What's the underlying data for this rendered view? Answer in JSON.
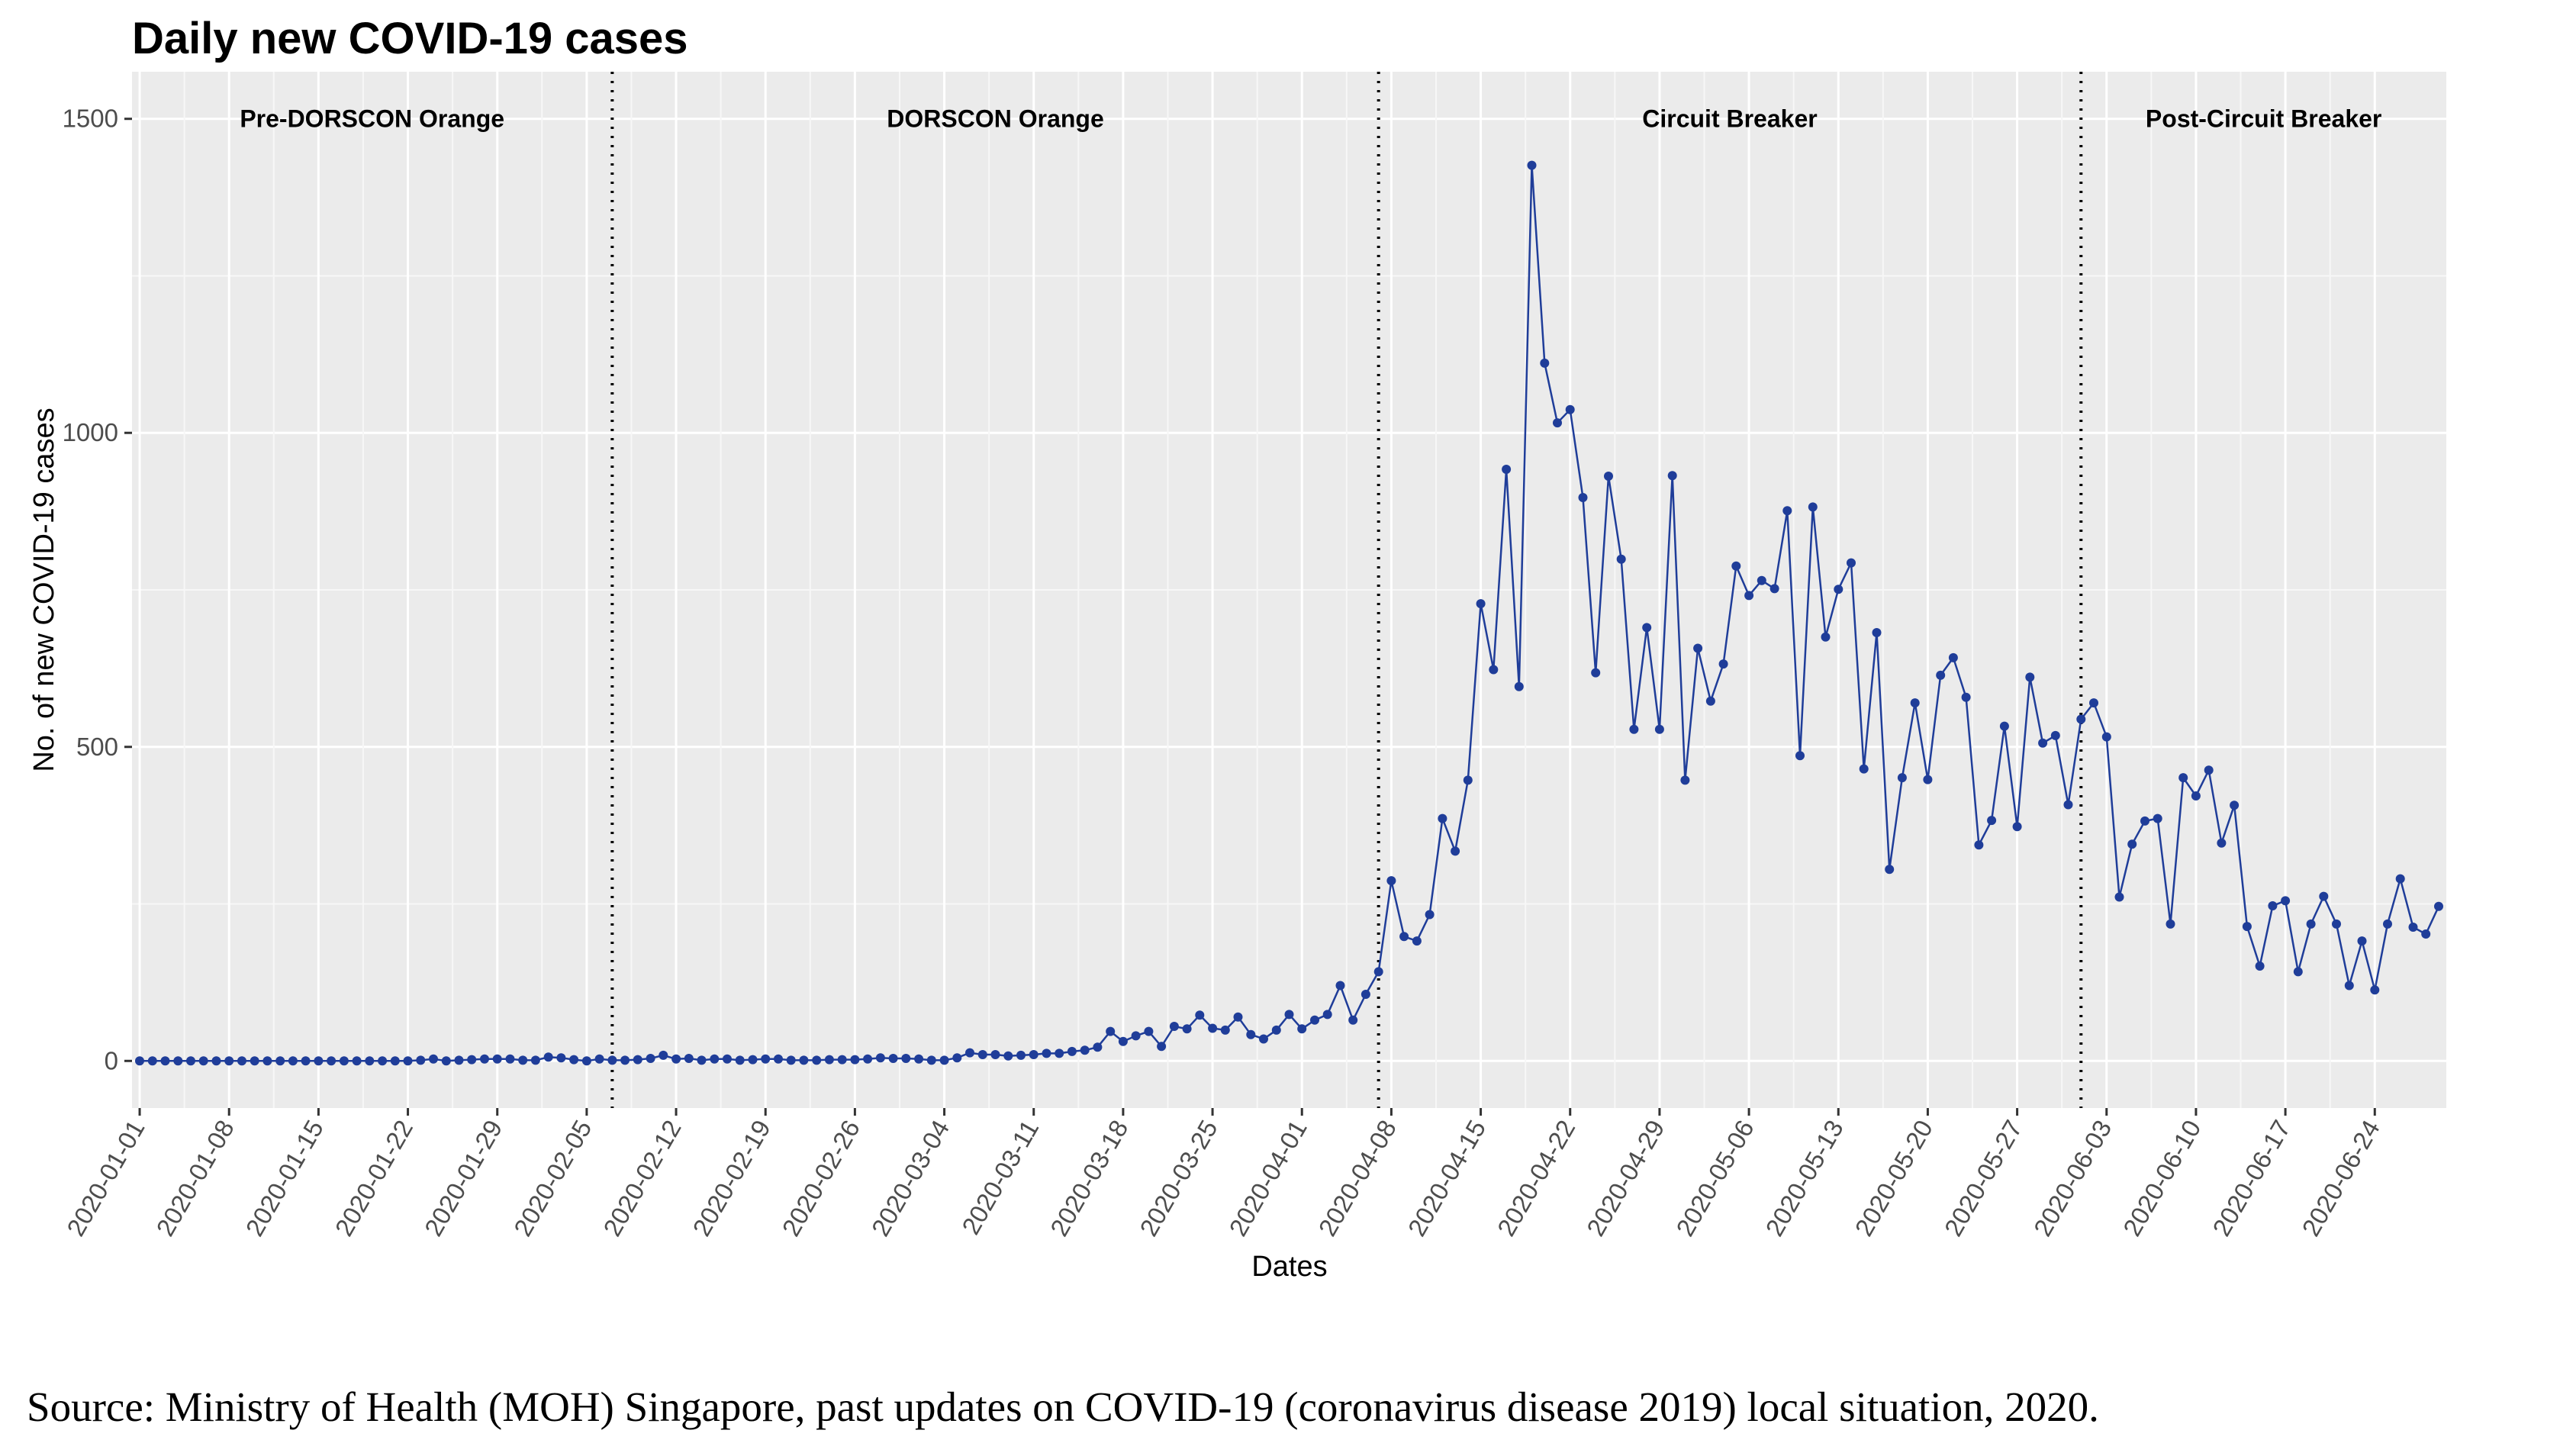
{
  "chart_data": {
    "type": "line",
    "title": "Daily new COVID-19 cases",
    "xlabel": "Dates",
    "ylabel": "No. of new COVID-19 cases",
    "ylim": [
      -75,
      1575
    ],
    "yticks": [
      0,
      500,
      1000,
      1500
    ],
    "start_date": "2020-01-01",
    "xtick_labels": [
      "2020-01-01",
      "2020-01-08",
      "2020-01-15",
      "2020-01-22",
      "2020-01-29",
      "2020-02-05",
      "2020-02-12",
      "2020-02-19",
      "2020-02-26",
      "2020-03-04",
      "2020-03-11",
      "2020-03-18",
      "2020-03-25",
      "2020-04-01",
      "2020-04-08",
      "2020-04-15",
      "2020-04-22",
      "2020-04-29",
      "2020-05-06",
      "2020-05-13",
      "2020-05-20",
      "2020-05-27",
      "2020-06-03",
      "2020-06-10",
      "2020-06-17",
      "2020-06-24"
    ],
    "phase_dividers": [
      "2020-02-07",
      "2020-04-07",
      "2020-06-01"
    ],
    "phases": [
      {
        "label": "Pre-DORSCON Orange"
      },
      {
        "label": "DORSCON Orange"
      },
      {
        "label": "Circuit Breaker"
      },
      {
        "label": "Post-Circuit Breaker"
      }
    ],
    "grid": true,
    "background": "#ebebeb",
    "line_color": "#1f3d99",
    "series": [
      {
        "values": [
          0,
          0,
          0,
          0,
          0,
          0,
          0,
          0,
          0,
          0,
          0,
          0,
          0,
          0,
          0,
          0,
          0,
          0,
          0,
          0,
          0,
          0,
          1,
          3,
          0,
          1,
          2,
          3,
          3,
          3,
          1,
          1,
          6,
          5,
          2,
          0,
          3,
          1,
          1,
          2,
          4,
          9,
          3,
          4,
          1,
          3,
          3,
          1,
          2,
          3,
          3,
          1,
          1,
          1,
          2,
          2,
          2,
          3,
          5,
          4,
          4,
          3,
          1,
          1,
          5,
          13,
          10,
          10,
          8,
          9,
          10,
          12,
          12,
          15,
          17,
          22,
          47,
          31,
          40,
          47,
          23,
          55,
          51,
          73,
          52,
          49,
          70,
          42,
          35,
          49,
          74,
          51,
          65,
          74,
          120,
          65,
          106,
          142,
          287,
          198,
          191,
          233,
          386,
          334,
          447,
          728,
          623,
          942,
          596,
          1426,
          1111,
          1016,
          1037,
          897,
          618,
          931,
          799,
          528,
          690,
          528,
          932,
          447,
          657,
          573,
          632,
          788,
          741,
          765,
          752,
          876,
          486,
          882,
          675,
          751,
          793,
          465,
          682,
          305,
          451,
          570,
          448,
          614,
          642,
          579,
          344,
          383,
          533,
          373,
          611,
          506,
          518,
          408,
          544,
          570,
          516,
          261,
          345,
          382,
          386,
          218,
          451,
          422,
          463,
          347,
          407,
          214,
          151,
          247,
          255,
          142,
          218,
          262,
          218,
          120,
          191,
          113,
          218,
          290,
          213,
          202,
          246
        ]
      }
    ]
  },
  "footer": {
    "source": "Source: Ministry of Health (MOH) Singapore, past updates on COVID-19 (coronavirus disease 2019) local situation, 2020."
  }
}
